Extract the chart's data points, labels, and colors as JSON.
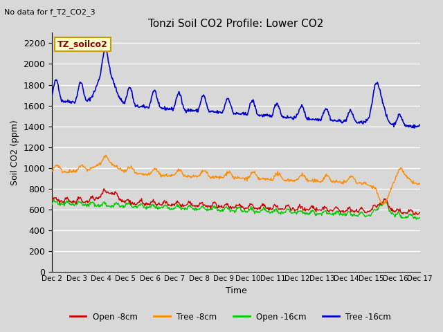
{
  "title": "Tonzi Soil CO2 Profile: Lower CO2",
  "no_data_text": "No data for f_T2_CO2_3",
  "ylabel": "Soil CO2 (ppm)",
  "xlabel": "Time",
  "legend_label": "TZ_soilco2",
  "ylim": [
    0,
    2300
  ],
  "yticks": [
    0,
    200,
    400,
    600,
    800,
    1000,
    1200,
    1400,
    1600,
    1800,
    2000,
    2200
  ],
  "xtick_labels": [
    "Dec 2",
    "Dec 3",
    "Dec 4",
    "Dec 5",
    "Dec 6",
    "Dec 7",
    "Dec 8",
    "Dec 9",
    "Dec 10",
    "Dec 11",
    "Dec 12",
    "Dec 13",
    "Dec 14",
    "Dec 15",
    "Dec 16",
    "Dec 17"
  ],
  "legend_entries": [
    {
      "label": "Open -8cm",
      "color": "#cc0000"
    },
    {
      "label": "Tree -8cm",
      "color": "#ff8c00"
    },
    {
      "label": "Open -16cm",
      "color": "#00cc00"
    },
    {
      "label": "Tree -16cm",
      "color": "#0000cc"
    }
  ],
  "bg_color": "#d8d8d8",
  "plot_bg_color": "#d8d8d8",
  "grid_color": "#ffffff",
  "n_points": 720,
  "seed": 42
}
